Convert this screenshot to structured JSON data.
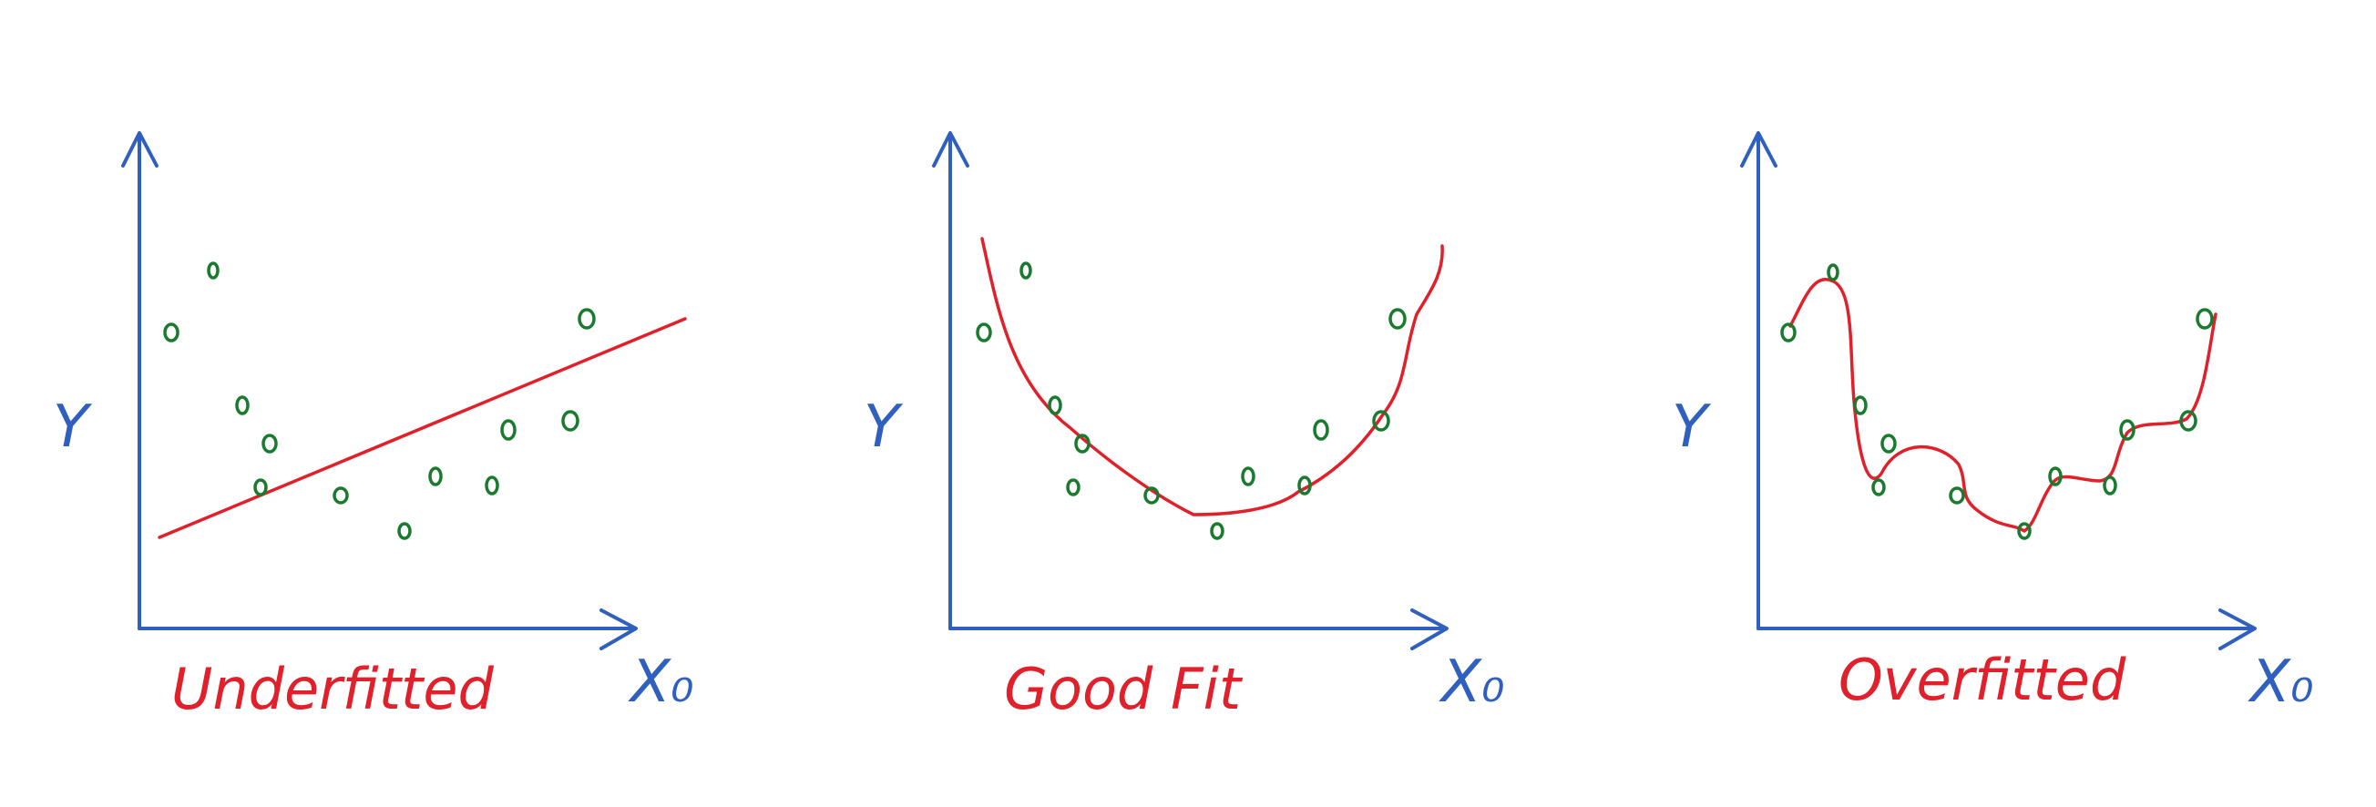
{
  "colors": {
    "axis": "#2f5fbf",
    "fit": "#e0202a",
    "points": "#1a7a2e"
  },
  "panels": [
    {
      "id": "underfitted",
      "label": "Underfitted",
      "y_label": "Y",
      "x_label": "X₀",
      "fit": "straight line"
    },
    {
      "id": "good-fit",
      "label": "Good Fit",
      "y_label": "Y",
      "x_label": "X₀",
      "fit": "smooth U-shaped curve"
    },
    {
      "id": "overfitted",
      "label": "Overfitted",
      "y_label": "Y",
      "x_label": "X₀",
      "fit": "wiggly curve through every point"
    }
  ]
}
